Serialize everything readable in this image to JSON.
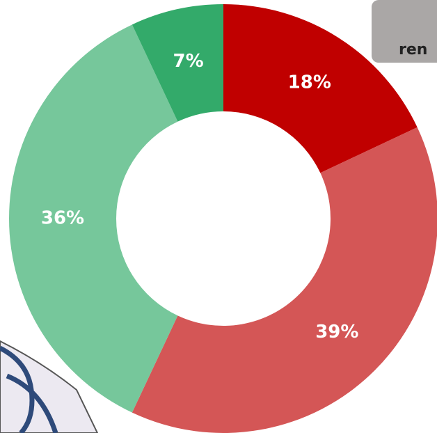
{
  "chart_data": {
    "type": "donut",
    "categories": [
      null,
      null,
      null,
      null
    ],
    "values": [
      18,
      39,
      36,
      7
    ],
    "value_labels": [
      "18%",
      "39%",
      "36%",
      "7%"
    ],
    "colors": [
      "#c00000",
      "#d45656",
      "#76c79b",
      "#33aa6a"
    ]
  },
  "badge": {
    "label": "ren"
  }
}
